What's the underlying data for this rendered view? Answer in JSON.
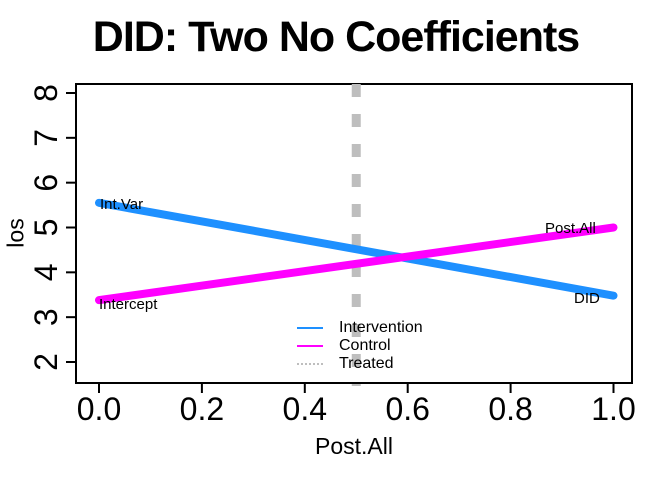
{
  "title": "DID: Two No Coefficients",
  "chart_data": {
    "type": "line",
    "title": "DID: Two No Coefficients",
    "xlabel": "Post.All",
    "ylabel": "los",
    "x_ticks": [
      "0.0",
      "0.2",
      "0.4",
      "0.6",
      "0.8",
      "1.0"
    ],
    "x_tick_values": [
      0.0,
      0.2,
      0.4,
      0.6,
      0.8,
      1.0
    ],
    "y_ticks": [
      "2",
      "3",
      "4",
      "5",
      "6",
      "7",
      "8"
    ],
    "y_tick_values": [
      2,
      3,
      4,
      5,
      6,
      7,
      8
    ],
    "xlim_ticks": [
      0,
      1
    ],
    "ylim_ticks": [
      2,
      8
    ],
    "grid": false,
    "background": "#FFFFFF",
    "series": [
      {
        "name": "Intervention",
        "type": "line",
        "color": "#1E90FF",
        "x": [
          0,
          1
        ],
        "y": [
          5.55,
          3.48
        ]
      },
      {
        "name": "Control",
        "type": "line",
        "color": "#FF00FF",
        "x": [
          0,
          1
        ],
        "y": [
          3.38,
          5.0
        ]
      },
      {
        "name": "Treated",
        "type": "vline",
        "color": "#BEBEBE",
        "linestyle": "dashed",
        "x": 0.5
      }
    ],
    "annotations": [
      {
        "text": "Int.Var",
        "x": 0,
        "y": 5.55,
        "series": "Intervention",
        "position": "start"
      },
      {
        "text": "Intercept",
        "x": 0,
        "y": 3.38,
        "series": "Control",
        "position": "start"
      },
      {
        "text": "Post.All",
        "x": 1,
        "y": 5.0,
        "series": "Control",
        "position": "end"
      },
      {
        "text": "DID",
        "x": 1,
        "y": 3.48,
        "series": "Intervention",
        "position": "end"
      }
    ],
    "legend": {
      "position": "bottom-center-inside",
      "entries": [
        {
          "label": "Intervention",
          "color": "#1E90FF",
          "linestyle": "solid"
        },
        {
          "label": "Control",
          "color": "#FF00FF",
          "linestyle": "solid"
        },
        {
          "label": "Treated",
          "color": "#BEBEBE",
          "linestyle": "dotted"
        }
      ]
    }
  }
}
